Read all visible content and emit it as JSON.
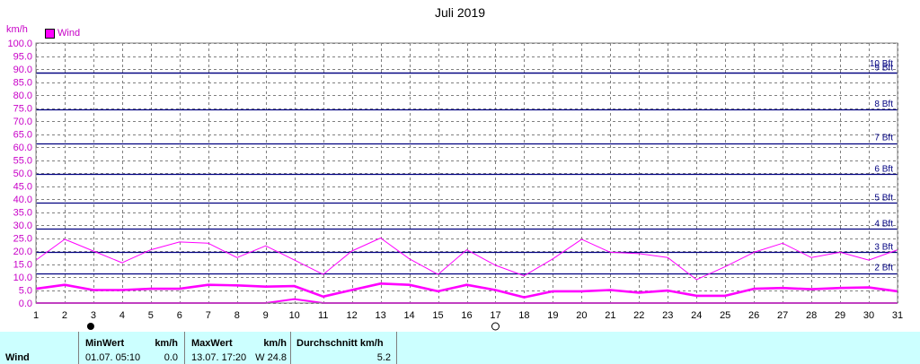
{
  "header": {
    "title": "Juli 2019",
    "unit": "km/h"
  },
  "legend": {
    "label": "Wind",
    "color": "#ff00ff"
  },
  "moon_phases": [
    {
      "day": 3,
      "phase": "new-moon"
    },
    {
      "day": 17,
      "phase": "full-moon"
    }
  ],
  "beaufort": {
    "color": "#000080",
    "lines": [
      {
        "label": "2 Bft",
        "value": 11.5
      },
      {
        "label": "3 Bft",
        "value": 19.5
      },
      {
        "label": "4 Bft",
        "value": 28.5
      },
      {
        "label": "5 Bft",
        "value": 38.5
      },
      {
        "label": "6 Bft",
        "value": 49.5
      },
      {
        "label": "7 Bft",
        "value": 61.5
      },
      {
        "label": "8 Bft",
        "value": 74.5
      },
      {
        "label": "9 Bft",
        "value": 88.5
      },
      {
        "label": "10 Bft",
        "value": 102
      }
    ]
  },
  "chart_data": {
    "type": "line",
    "title": "Juli 2019",
    "ylabel": "km/h",
    "ylim": [
      0,
      100
    ],
    "ytick_step": 5,
    "xlim": [
      1,
      31
    ],
    "x": [
      1,
      2,
      3,
      4,
      5,
      6,
      7,
      8,
      9,
      10,
      11,
      12,
      13,
      14,
      15,
      16,
      17,
      18,
      19,
      20,
      21,
      22,
      23,
      24,
      25,
      26,
      27,
      28,
      29,
      30,
      31
    ],
    "grid": true,
    "legend_position": "top-left",
    "series": [
      {
        "name": "Wind",
        "role": "max",
        "color": "#ff00ff",
        "values": [
          16.5,
          24.5,
          20,
          15.5,
          20.5,
          23.5,
          23,
          17.5,
          22,
          16.5,
          11,
          20,
          25,
          17,
          11,
          20.5,
          14.5,
          10.5,
          17,
          24.5,
          19.5,
          19,
          17.5,
          9,
          14,
          19.5,
          23,
          17.5,
          19.5,
          16.5,
          20.5
        ]
      },
      {
        "role": "average",
        "color": "#ff00ff",
        "values": [
          5.5,
          7,
          5,
          5,
          5.5,
          5.5,
          7,
          6.8,
          6.3,
          6.5,
          2.5,
          5,
          7.5,
          7,
          4.5,
          7,
          5,
          2.2,
          4.5,
          4.5,
          5,
          4,
          4.8,
          2.8,
          2.8,
          5.5,
          5.8,
          5.3,
          5.8,
          6,
          4.5
        ]
      },
      {
        "role": "min",
        "color": "#ff00ff",
        "values": [
          0,
          0,
          0,
          0,
          0,
          0,
          0,
          0,
          0,
          1.5,
          0,
          0,
          0,
          0,
          0,
          0,
          0,
          0,
          0,
          0,
          0,
          0,
          0,
          0,
          0,
          0,
          0,
          0,
          0,
          0,
          0
        ]
      }
    ]
  },
  "stats": {
    "series_label": "Wind",
    "min": {
      "header": "MinWert",
      "unit": "km/h",
      "datetime": "01.07.  05:10",
      "value": "0.0"
    },
    "max": {
      "header": "MaxWert",
      "unit": "km/h",
      "datetime": "13.07.  17:20",
      "value": "W 24.8"
    },
    "avg": {
      "header": "Durchschnitt km/h",
      "value": "5.2"
    }
  }
}
